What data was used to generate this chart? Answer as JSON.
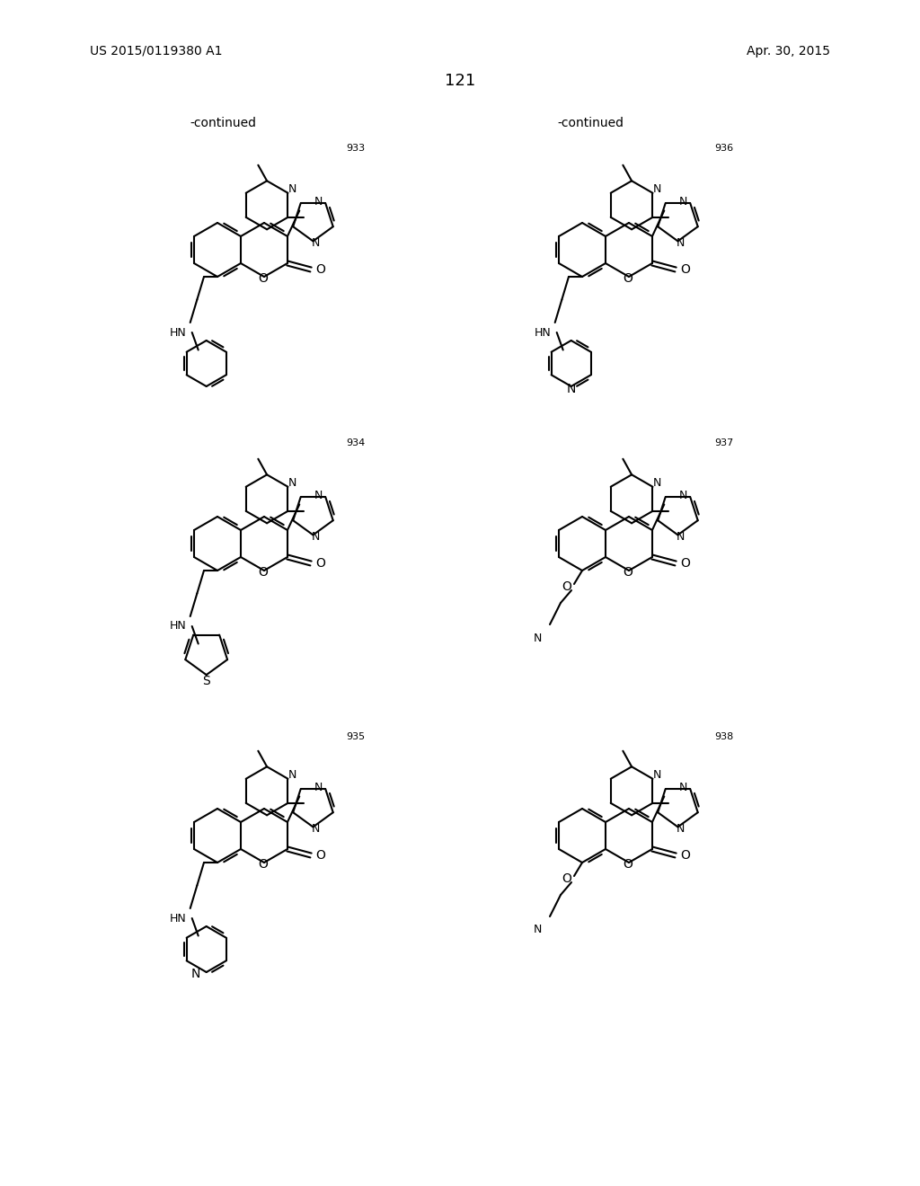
{
  "bg": "#ffffff",
  "header_left": "US 2015/0119380 A1",
  "header_right": "Apr. 30, 2015",
  "page_num": "121",
  "continued": "-continued",
  "compounds": [
    "933",
    "934",
    "935",
    "936",
    "937",
    "938"
  ]
}
